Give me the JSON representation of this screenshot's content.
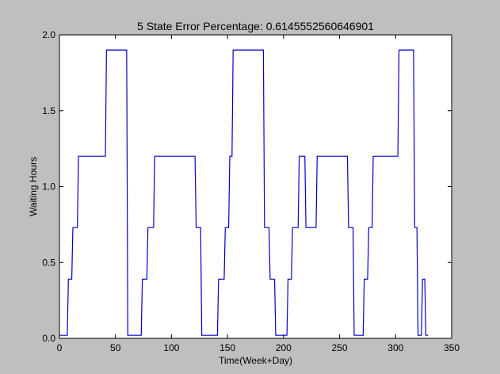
{
  "chart_data": {
    "type": "line",
    "title": "5 State Error Percentage: 0.6145552560646901",
    "xlabel": "Time(Week+Day)",
    "ylabel": "Waiting Hours",
    "xlim": [
      0,
      350
    ],
    "ylim": [
      0,
      2.0
    ],
    "xticks": [
      0,
      50,
      100,
      150,
      200,
      250,
      300,
      350
    ],
    "yticks": [
      0.0,
      0.5,
      1.0,
      1.5,
      2.0
    ],
    "xtick_labels": [
      "0",
      "50",
      "100",
      "150",
      "200",
      "250",
      "300",
      "350"
    ],
    "ytick_labels": [
      "0.0",
      "0.5",
      "1.0",
      "1.5",
      "2.0"
    ],
    "grid": false,
    "line_color": "#0000cc",
    "series": [
      {
        "x": [
          0,
          7,
          8,
          11,
          12,
          16,
          17,
          41,
          42,
          60,
          61,
          73,
          74,
          78,
          79,
          84,
          85,
          121,
          122,
          126,
          127,
          141,
          142,
          147,
          148,
          151,
          152,
          154,
          155,
          182,
          183,
          187,
          188,
          192,
          193,
          203,
          204,
          207,
          208,
          213,
          214,
          219,
          220,
          229,
          230,
          257,
          258,
          262,
          263,
          271,
          272,
          275,
          276,
          279,
          280,
          302,
          303,
          316,
          317,
          319,
          320,
          323,
          324,
          326,
          327,
          329
        ],
        "y": [
          0.02,
          0.02,
          0.39,
          0.39,
          0.73,
          0.73,
          1.2,
          1.2,
          1.9,
          1.9,
          0.02,
          0.02,
          0.39,
          0.39,
          0.73,
          0.73,
          1.2,
          1.2,
          0.73,
          0.73,
          0.02,
          0.02,
          0.39,
          0.39,
          0.73,
          0.73,
          1.2,
          1.2,
          1.9,
          1.9,
          0.73,
          0.73,
          0.39,
          0.39,
          0.02,
          0.02,
          0.39,
          0.39,
          0.73,
          0.73,
          1.2,
          1.2,
          0.73,
          0.73,
          1.2,
          1.2,
          0.73,
          0.73,
          0.02,
          0.02,
          0.39,
          0.39,
          0.73,
          0.73,
          1.2,
          1.2,
          1.9,
          1.9,
          0.73,
          0.73,
          0.02,
          0.02,
          0.39,
          0.39,
          0.02,
          0.02
        ]
      }
    ]
  }
}
